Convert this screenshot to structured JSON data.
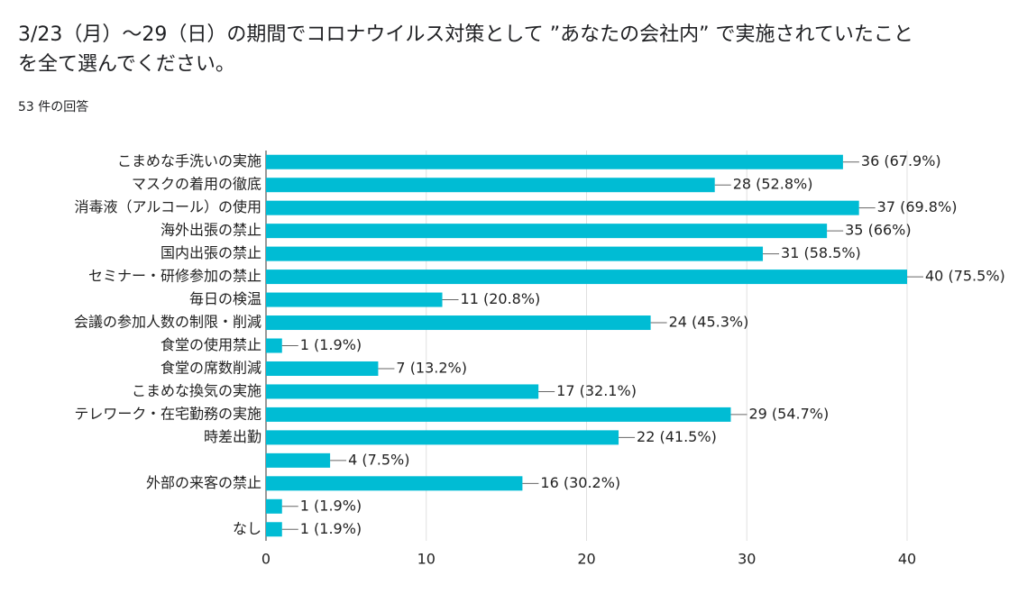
{
  "chart_data": {
    "type": "bar",
    "orientation": "horizontal",
    "title": "3/23（月）〜29（日）の期間でコロナウイルス対策として ”あなたの会社内” で実施されていたことを全て選んでください。",
    "subtitle": "53 件の回答",
    "categories": [
      "こまめな手洗いの実施",
      "マスクの着用の徹底",
      "消毒液（アルコール）の使用",
      "海外出張の禁止",
      "国内出張の禁止",
      "セミナー・研修参加の禁止",
      "毎日の検温",
      "会議の参加人数の制限・削減",
      "食堂の使用禁止",
      "食堂の席数削減",
      "こまめな換気の実施",
      "テレワーク・在宅勤務の実施",
      "時差出勤",
      null,
      "外部の来客の禁止",
      null,
      "なし"
    ],
    "values": [
      36,
      28,
      37,
      35,
      31,
      40,
      11,
      24,
      1,
      7,
      17,
      29,
      22,
      4,
      16,
      1,
      1
    ],
    "value_labels": [
      "36 (67.9%)",
      "28 (52.8%)",
      "37 (69.8%)",
      "35 (66%)",
      "31 (58.5%)",
      "40 (75.5%)",
      "11 (20.8%)",
      "24 (45.3%)",
      "1 (1.9%)",
      "7 (13.2%)",
      "17 (32.1%)",
      "29 (54.7%)",
      "22 (41.5%)",
      "4 (7.5%)",
      "16 (30.2%)",
      "1 (1.9%)",
      "1 (1.9%)"
    ],
    "color": "#00bcd4",
    "xlim": [
      0,
      40
    ],
    "xticks": [
      0,
      10,
      20,
      30,
      40
    ],
    "grid": true
  }
}
